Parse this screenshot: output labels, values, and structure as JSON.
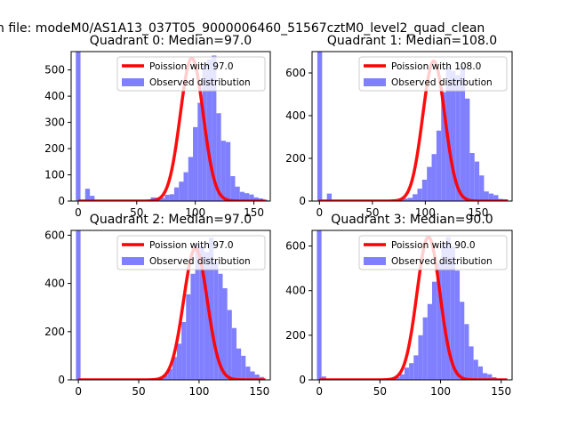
{
  "suptitle": "n file: modeM0/AS1A13_037T05_9000006460_51567cztM0_level2_quad_clean",
  "colors": {
    "bars": "#8080ff",
    "fit": "#ff0000"
  },
  "chart_data": [
    {
      "type": "bar",
      "title": "Quadrant 0: Median=97.0",
      "xlim": [
        -6,
        164
      ],
      "ylim": [
        0,
        570
      ],
      "xticks": [
        0,
        50,
        100,
        150
      ],
      "yticks": [
        0,
        100,
        200,
        300,
        400,
        500
      ],
      "legend": {
        "location": "upper-right",
        "fit_label": "Poission with 97.0",
        "hist_label": "Observed distribution"
      },
      "bin_width": 4,
      "bin_start": -2,
      "counts": [
        640,
        5,
        47,
        20,
        3,
        2,
        0,
        1,
        2,
        1,
        0,
        0,
        0,
        0,
        0,
        0,
        14,
        13,
        12,
        24,
        26,
        52,
        74,
        110,
        168,
        282,
        375,
        520,
        540,
        555,
        335,
        230,
        225,
        95,
        55,
        35,
        30,
        25,
        14,
        10,
        5
      ],
      "fit": {
        "mean": 97.0,
        "peak": 545,
        "sigma": 9.8
      }
    },
    {
      "type": "bar",
      "title": "Quadrant 1: Median=108.0",
      "xlim": [
        -7,
        182
      ],
      "ylim": [
        0,
        700
      ],
      "xticks": [
        0,
        50,
        100,
        150
      ],
      "yticks": [
        0,
        200,
        400,
        600
      ],
      "legend": {
        "location": "upper-right",
        "fit_label": "Poission with 108.0",
        "hist_label": "Observed distribution"
      },
      "bin_width": 4.5,
      "bin_start": -2,
      "counts": [
        720,
        4,
        35,
        3,
        1,
        0,
        0,
        0,
        0,
        0,
        0,
        0,
        0,
        0,
        0,
        0,
        0,
        6,
        12,
        15,
        32,
        58,
        100,
        160,
        220,
        330,
        510,
        630,
        610,
        590,
        630,
        480,
        225,
        185,
        120,
        45,
        35,
        28,
        10,
        8
      ],
      "fit": {
        "mean": 108.0,
        "peak": 655,
        "sigma": 10.5
      }
    },
    {
      "type": "bar",
      "title": "Quadrant 2: Median=97.0",
      "xlim": [
        -6,
        159
      ],
      "ylim": [
        0,
        620
      ],
      "xticks": [
        0,
        50,
        100,
        150
      ],
      "yticks": [
        0,
        200,
        400,
        600
      ],
      "legend": {
        "location": "upper-right",
        "fit_label": "Poission with 97.0",
        "hist_label": "Observed distribution"
      },
      "bin_width": 3.8,
      "bin_start": -2,
      "counts": [
        660,
        0,
        0,
        0,
        0,
        0,
        0,
        0,
        0,
        0,
        0,
        0,
        0,
        0,
        0,
        0,
        0,
        3,
        8,
        20,
        45,
        95,
        150,
        240,
        355,
        440,
        565,
        555,
        530,
        590,
        490,
        440,
        380,
        290,
        215,
        130,
        100,
        55,
        35,
        22,
        12
      ],
      "fit": {
        "mean": 97.0,
        "peak": 545,
        "sigma": 9.8
      }
    },
    {
      "type": "bar",
      "title": "Quadrant 3: Median=90.0",
      "xlim": [
        -6,
        159
      ],
      "ylim": [
        0,
        670
      ],
      "xticks": [
        0,
        50,
        100,
        150
      ],
      "yticks": [
        0,
        200,
        400,
        600
      ],
      "legend": {
        "location": "upper-right",
        "fit_label": "Poission with 90.0",
        "hist_label": "Observed distribution"
      },
      "bin_width": 3.8,
      "bin_start": -2,
      "counts": [
        700,
        15,
        0,
        0,
        0,
        0,
        0,
        0,
        0,
        0,
        0,
        0,
        0,
        0,
        0,
        0,
        5,
        12,
        25,
        55,
        75,
        110,
        200,
        280,
        340,
        440,
        525,
        610,
        640,
        600,
        490,
        350,
        250,
        150,
        90,
        60,
        30,
        25,
        12,
        5,
        2
      ],
      "fit": {
        "mean": 90.0,
        "peak": 640,
        "sigma": 9.5
      }
    }
  ]
}
